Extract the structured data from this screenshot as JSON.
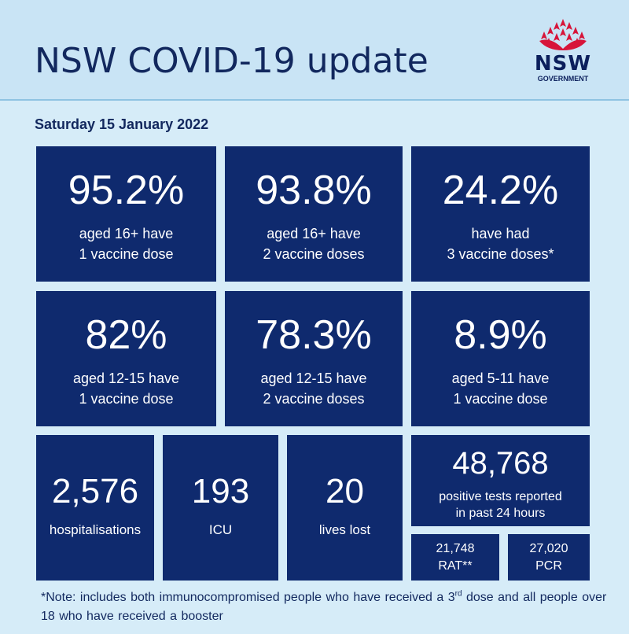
{
  "header": {
    "title": "NSW COVID-19 update",
    "logo_text": "NSW",
    "logo_subtext": "GOVERNMENT"
  },
  "date": "Saturday 15 January 2022",
  "tiles_row1": [
    {
      "value": "95.2%",
      "line1": "aged 16+ have",
      "line2": "1 vaccine dose"
    },
    {
      "value": "93.8%",
      "line1": "aged 16+ have",
      "line2": "2 vaccine doses"
    },
    {
      "value": "24.2%",
      "line1": "have had",
      "line2": "3 vaccine doses*"
    }
  ],
  "tiles_row2": [
    {
      "value": "82%",
      "line1": "aged 12-15 have",
      "line2": "1 vaccine dose"
    },
    {
      "value": "78.3%",
      "line1": "aged 12-15 have",
      "line2": "2 vaccine doses"
    },
    {
      "value": "8.9%",
      "line1": "aged 5-11 have",
      "line2": "1 vaccine dose"
    }
  ],
  "hospitalisations": {
    "value": "2,576",
    "label": "hospitalisations"
  },
  "icu": {
    "value": "193",
    "label": "ICU"
  },
  "lives_lost": {
    "value": "20",
    "label": "lives lost"
  },
  "positive_tests": {
    "value": "48,768",
    "line1": "positive tests reported",
    "line2": "in past 24 hours"
  },
  "rat": {
    "value": "21,748",
    "label": "RAT**"
  },
  "pcr": {
    "value": "27,020",
    "label": "PCR"
  },
  "note": {
    "part1": "*Note: includes both immunocompromised people who have received a 3",
    "sup": "rd",
    "part2": " dose and all people over 18 who have received a booster"
  },
  "colors": {
    "tile": "#0f2a6e",
    "background": "#d6ecf8",
    "header": "#c9e4f5",
    "logo_red": "#d7153a"
  }
}
